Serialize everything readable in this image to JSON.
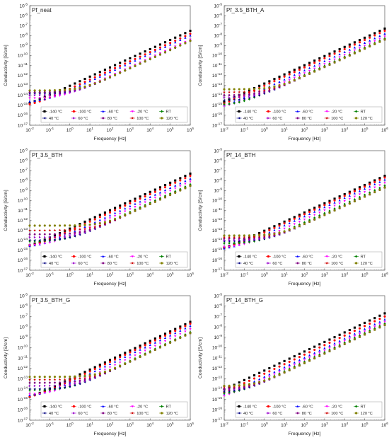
{
  "figure": {
    "xlabel": "Frequency [Hz]",
    "ylabel": "Conductivity [S/cm]",
    "x_ticks": [
      "10^-2",
      "10^-1",
      "10^0",
      "10^1",
      "10^2",
      "10^3",
      "10^4",
      "10^5",
      "10^6"
    ],
    "y_ticks": [
      "10^-17",
      "10^-16",
      "10^-15",
      "10^-14",
      "10^-13",
      "10^-12",
      "10^-11",
      "10^-10",
      "10^-9",
      "10^-8",
      "10^-7",
      "10^-6",
      "10^-5"
    ]
  },
  "legend": [
    {
      "label": "-140 °C",
      "color": "#000000",
      "marker": "square"
    },
    {
      "label": "-100 °C",
      "color": "#ff0000",
      "marker": "circle"
    },
    {
      "label": "-60 °C",
      "color": "#0000ff",
      "marker": "triangle-up"
    },
    {
      "label": "-20 °C",
      "color": "#ff00ff",
      "marker": "triangle-down"
    },
    {
      "label": "RT",
      "color": "#008000",
      "marker": "diamond"
    },
    {
      "label": "40 °C",
      "color": "#000080",
      "marker": "triangle-left"
    },
    {
      "label": "60 °C",
      "color": "#9900cc",
      "marker": "triangle-right"
    },
    {
      "label": "80 °C",
      "color": "#800080",
      "marker": "hexagon"
    },
    {
      "label": "100 °C",
      "color": "#cc0000",
      "marker": "star"
    },
    {
      "label": "120 °C",
      "color": "#808000",
      "marker": "circle"
    }
  ],
  "chart_data": [
    {
      "type": "scatter",
      "title": "Pf_neat",
      "xlabel": "Frequency [Hz]",
      "ylabel": "Conductivity [S/cm]",
      "x_scale": "log",
      "y_scale": "log",
      "xlim": [
        0.01,
        1000000
      ],
      "ylim": [
        1e-17,
        1e-05
      ],
      "series": [
        {
          "name": "-140 °C",
          "low_freq_conductivity": 4e-16,
          "conductivity_at_1MHz": 3e-08
        },
        {
          "name": "-100 °C",
          "low_freq_conductivity": 6e-16,
          "conductivity_at_1MHz": 1.5e-08
        },
        {
          "name": "-60 °C",
          "low_freq_conductivity": 2e-15,
          "conductivity_at_1MHz": 1e-08
        },
        {
          "name": "-20 °C",
          "low_freq_conductivity": 5e-15,
          "conductivity_at_1MHz": 4e-09
        },
        {
          "name": "RT",
          "low_freq_conductivity": 2e-14,
          "conductivity_at_1MHz": 3e-09
        },
        {
          "name": "40 °C",
          "low_freq_conductivity": 1.5e-14,
          "conductivity_at_1MHz": 3e-09
        },
        {
          "name": "60 °C",
          "low_freq_conductivity": 1e-14,
          "conductivity_at_1MHz": 3e-09
        },
        {
          "name": "80 °C",
          "low_freq_conductivity": 2e-14,
          "conductivity_at_1MHz": 3e-09
        },
        {
          "name": "100 °C",
          "low_freq_conductivity": 3e-14,
          "conductivity_at_1MHz": 3e-09
        },
        {
          "name": "120 °C",
          "low_freq_conductivity": 3e-14,
          "conductivity_at_1MHz": 3e-09
        }
      ]
    },
    {
      "type": "scatter",
      "title": "Pf_3.5_BTH_A",
      "xlabel": "Frequency [Hz]",
      "ylabel": "Conductivity [S/cm]",
      "x_scale": "log",
      "y_scale": "log",
      "xlim": [
        0.01,
        1000000
      ],
      "ylim": [
        1e-17,
        1e-05
      ],
      "series": [
        {
          "name": "-140 °C",
          "low_freq_conductivity": 1e-16,
          "conductivity_at_1MHz": 5e-08
        },
        {
          "name": "-100 °C",
          "low_freq_conductivity": 2e-16,
          "conductivity_at_1MHz": 3e-08
        },
        {
          "name": "-60 °C",
          "low_freq_conductivity": 3e-16,
          "conductivity_at_1MHz": 1.5e-08
        },
        {
          "name": "-20 °C",
          "low_freq_conductivity": 5e-16,
          "conductivity_at_1MHz": 8e-09
        },
        {
          "name": "RT",
          "low_freq_conductivity": 1e-15,
          "conductivity_at_1MHz": 5e-09
        },
        {
          "name": "40 °C",
          "low_freq_conductivity": 3e-15,
          "conductivity_at_1MHz": 4e-09
        },
        {
          "name": "60 °C",
          "low_freq_conductivity": 6e-15,
          "conductivity_at_1MHz": 4e-09
        },
        {
          "name": "80 °C",
          "low_freq_conductivity": 1e-14,
          "conductivity_at_1MHz": 4e-09
        },
        {
          "name": "100 °C",
          "low_freq_conductivity": 2e-14,
          "conductivity_at_1MHz": 4e-09
        },
        {
          "name": "120 °C",
          "low_freq_conductivity": 4e-14,
          "conductivity_at_1MHz": 4e-09
        }
      ]
    },
    {
      "type": "scatter",
      "title": "Pf_3.5_BTH",
      "xlabel": "Frequency [Hz]",
      "ylabel": "Conductivity [S/cm]",
      "x_scale": "log",
      "y_scale": "log",
      "xlim": [
        0.01,
        1000000
      ],
      "ylim": [
        1e-17,
        1e-05
      ],
      "series": [
        {
          "name": "-140 °C",
          "low_freq_conductivity": 1e-15,
          "conductivity_at_1MHz": 5e-08
        },
        {
          "name": "-100 °C",
          "low_freq_conductivity": 1.5e-15,
          "conductivity_at_1MHz": 3e-08
        },
        {
          "name": "-60 °C",
          "low_freq_conductivity": 2e-15,
          "conductivity_at_1MHz": 1.5e-08
        },
        {
          "name": "-20 °C",
          "low_freq_conductivity": 3e-15,
          "conductivity_at_1MHz": 8e-09
        },
        {
          "name": "RT",
          "low_freq_conductivity": 8e-15,
          "conductivity_at_1MHz": 4e-09
        },
        {
          "name": "40 °C",
          "low_freq_conductivity": 1e-14,
          "conductivity_at_1MHz": 3e-09
        },
        {
          "name": "60 °C",
          "low_freq_conductivity": 2e-14,
          "conductivity_at_1MHz": 3e-09
        },
        {
          "name": "80 °C",
          "low_freq_conductivity": 4e-14,
          "conductivity_at_1MHz": 3e-09
        },
        {
          "name": "100 °C",
          "low_freq_conductivity": 1e-13,
          "conductivity_at_1MHz": 3e-09
        },
        {
          "name": "120 °C",
          "low_freq_conductivity": 3e-13,
          "conductivity_at_1MHz": 3e-09
        }
      ]
    },
    {
      "type": "scatter",
      "title": "Pf_14_BTH",
      "xlabel": "Frequency [Hz]",
      "ylabel": "Conductivity [S/cm]",
      "x_scale": "log",
      "y_scale": "log",
      "xlim": [
        0.01,
        1000000
      ],
      "ylim": [
        1e-17,
        1e-05
      ],
      "series": [
        {
          "name": "-140 °C",
          "low_freq_conductivity": 5e-16,
          "conductivity_at_1MHz": 3e-08
        },
        {
          "name": "-100 °C",
          "low_freq_conductivity": 8e-16,
          "conductivity_at_1MHz": 2e-08
        },
        {
          "name": "-60 °C",
          "low_freq_conductivity": 1e-15,
          "conductivity_at_1MHz": 1.2e-08
        },
        {
          "name": "-20 °C",
          "low_freq_conductivity": 2e-15,
          "conductivity_at_1MHz": 6e-09
        },
        {
          "name": "RT",
          "low_freq_conductivity": 5e-15,
          "conductivity_at_1MHz": 3e-09
        },
        {
          "name": "40 °C",
          "low_freq_conductivity": 8e-15,
          "conductivity_at_1MHz": 2e-09
        },
        {
          "name": "60 °C",
          "low_freq_conductivity": 1e-14,
          "conductivity_at_1MHz": 2e-09
        },
        {
          "name": "80 °C",
          "low_freq_conductivity": 1.5e-14,
          "conductivity_at_1MHz": 2e-09
        },
        {
          "name": "100 °C",
          "low_freq_conductivity": 2e-14,
          "conductivity_at_1MHz": 2e-09
        },
        {
          "name": "120 °C",
          "low_freq_conductivity": 3e-14,
          "conductivity_at_1MHz": 2e-09
        }
      ]
    },
    {
      "type": "scatter",
      "title": "Pf_3.5_BTH_G",
      "xlabel": "Frequency [Hz]",
      "ylabel": "Conductivity [S/cm]",
      "x_scale": "log",
      "y_scale": "log",
      "xlim": [
        0.01,
        1000000
      ],
      "ylim": [
        1e-17,
        1e-05
      ],
      "series": [
        {
          "name": "-140 °C",
          "low_freq_conductivity": 5e-16,
          "conductivity_at_1MHz": 3e-08
        },
        {
          "name": "-100 °C",
          "low_freq_conductivity": 1e-15,
          "conductivity_at_1MHz": 2e-08
        },
        {
          "name": "-60 °C",
          "low_freq_conductivity": 2e-15,
          "conductivity_at_1MHz": 1.2e-08
        },
        {
          "name": "-20 °C",
          "low_freq_conductivity": 3e-15,
          "conductivity_at_1MHz": 6e-09
        },
        {
          "name": "RT",
          "low_freq_conductivity": 8e-15,
          "conductivity_at_1MHz": 3e-09
        },
        {
          "name": "40 °C",
          "low_freq_conductivity": 1e-14,
          "conductivity_at_1MHz": 2.5e-09
        },
        {
          "name": "60 °C",
          "low_freq_conductivity": 2e-14,
          "conductivity_at_1MHz": 2.5e-09
        },
        {
          "name": "80 °C",
          "low_freq_conductivity": 4e-14,
          "conductivity_at_1MHz": 2.5e-09
        },
        {
          "name": "100 °C",
          "low_freq_conductivity": 8e-14,
          "conductivity_at_1MHz": 2.5e-09
        },
        {
          "name": "120 °C",
          "low_freq_conductivity": 1.5e-13,
          "conductivity_at_1MHz": 2.5e-09
        }
      ]
    },
    {
      "type": "scatter",
      "title": "Pf_14_BTH_G",
      "xlabel": "Frequency [Hz]",
      "ylabel": "Conductivity [S/cm]",
      "x_scale": "log",
      "y_scale": "log",
      "xlim": [
        0.01,
        1000000
      ],
      "ylim": [
        1e-17,
        1e-05
      ],
      "series": [
        {
          "name": "-140 °C",
          "low_freq_conductivity": 3e-16,
          "conductivity_at_1MHz": 2e-07
        },
        {
          "name": "-100 °C",
          "low_freq_conductivity": 5e-16,
          "conductivity_at_1MHz": 1e-07
        },
        {
          "name": "-60 °C",
          "low_freq_conductivity": 8e-16,
          "conductivity_at_1MHz": 5e-08
        },
        {
          "name": "-20 °C",
          "low_freq_conductivity": 1e-15,
          "conductivity_at_1MHz": 3e-08
        },
        {
          "name": "RT",
          "low_freq_conductivity": 3e-15,
          "conductivity_at_1MHz": 2e-08
        },
        {
          "name": "40 °C",
          "low_freq_conductivity": 5e-15,
          "conductivity_at_1MHz": 1.5e-08
        },
        {
          "name": "60 °C",
          "low_freq_conductivity": 8e-15,
          "conductivity_at_1MHz": 1.5e-08
        },
        {
          "name": "80 °C",
          "low_freq_conductivity": 1e-14,
          "conductivity_at_1MHz": 1.5e-08
        },
        {
          "name": "100 °C",
          "low_freq_conductivity": 1.5e-14,
          "conductivity_at_1MHz": 1.5e-08
        },
        {
          "name": "120 °C",
          "low_freq_conductivity": 2e-14,
          "conductivity_at_1MHz": 1.5e-08
        }
      ]
    }
  ]
}
